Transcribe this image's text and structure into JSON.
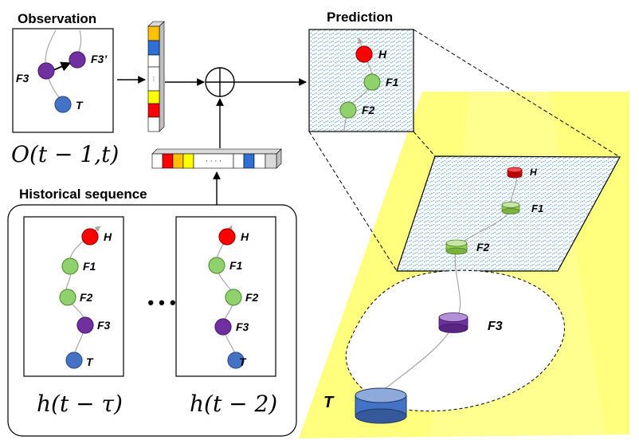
{
  "titles": {
    "observation": "Observation",
    "prediction": "Prediction",
    "historical": "Historical sequence"
  },
  "formulas": {
    "observation": "O(t − 1,t)",
    "history_left": "h(t − τ)",
    "history_right": "h(t − 2)"
  },
  "nodes": {
    "head": "H",
    "finger1": "F1",
    "finger2": "F2",
    "finger3": "F3",
    "finger3_prime": "F3’",
    "tail": "T"
  },
  "ellipsis": "• • •",
  "vector_dots": "· · · ·",
  "colors": {
    "head": "#ff0000",
    "finger_light": "#8fd16a",
    "finger_dark": "#7030a0",
    "tail": "#4472c4",
    "spotlight": "#ffff66",
    "hatch": "#4f97c9",
    "vec_yellow": "#ffc000",
    "vec_blue": "#2f6fd6",
    "vec_white": "#ffffff",
    "vec_red": "#ff0000",
    "vec_bright_yellow": "#ffff00",
    "vec_gray": "#bfbfbf"
  }
}
